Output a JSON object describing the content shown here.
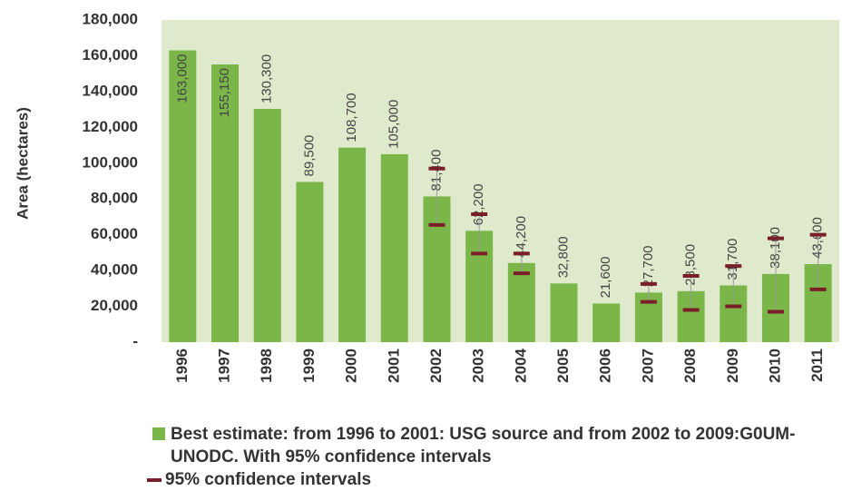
{
  "chart_data": {
    "type": "bar",
    "y_label": "Area (hectares)",
    "categories": [
      "1996",
      "1997",
      "1998",
      "1999",
      "2000",
      "2001",
      "2002",
      "2003",
      "2004",
      "2005",
      "2006",
      "2007",
      "2008",
      "2009",
      "2010",
      "2011"
    ],
    "series": [
      {
        "name": "Best estimate: from 1996 to 2001: USG source and from 2002 to 2009:G0UM-UNODC. With 95% confidence intervals",
        "color": "#7ab648",
        "values": [
          163000,
          155150,
          130300,
          89500,
          108700,
          105000,
          81400,
          62200,
          44200,
          32800,
          21600,
          27700,
          28500,
          31700,
          38100,
          43600
        ],
        "value_labels": [
          "163,000",
          "155,150",
          "130,300",
          "89,500",
          "108,700",
          "105,000",
          "81,400",
          "62,200",
          "44,200",
          "32,800",
          "21,600",
          "27,700",
          "28,500",
          "31,700",
          "38,100",
          "43,600"
        ]
      }
    ],
    "intervals": {
      "name": "95% confidence intervals",
      "color": "#7a1f2a",
      "low": [
        null,
        null,
        null,
        null,
        null,
        null,
        65500,
        49500,
        38500,
        null,
        null,
        22500,
        18000,
        20000,
        17000,
        29500
      ],
      "high": [
        null,
        null,
        null,
        null,
        null,
        null,
        97000,
        71500,
        49500,
        null,
        null,
        32500,
        37000,
        42500,
        58000,
        60000
      ]
    },
    "ylim": [
      0,
      180000
    ],
    "yticks": [
      {
        "value": 0,
        "label": "-"
      },
      {
        "value": 20000,
        "label": "20,000"
      },
      {
        "value": 40000,
        "label": "40,000"
      },
      {
        "value": 60000,
        "label": "60,000"
      },
      {
        "value": 80000,
        "label": "80,000"
      },
      {
        "value": 100000,
        "label": "100,000"
      },
      {
        "value": 120000,
        "label": "120,000"
      },
      {
        "value": 140000,
        "label": "140,000"
      },
      {
        "value": 160000,
        "label": "160,000"
      },
      {
        "value": 180000,
        "label": "180,000"
      }
    ],
    "background": "#dfe9cb"
  }
}
